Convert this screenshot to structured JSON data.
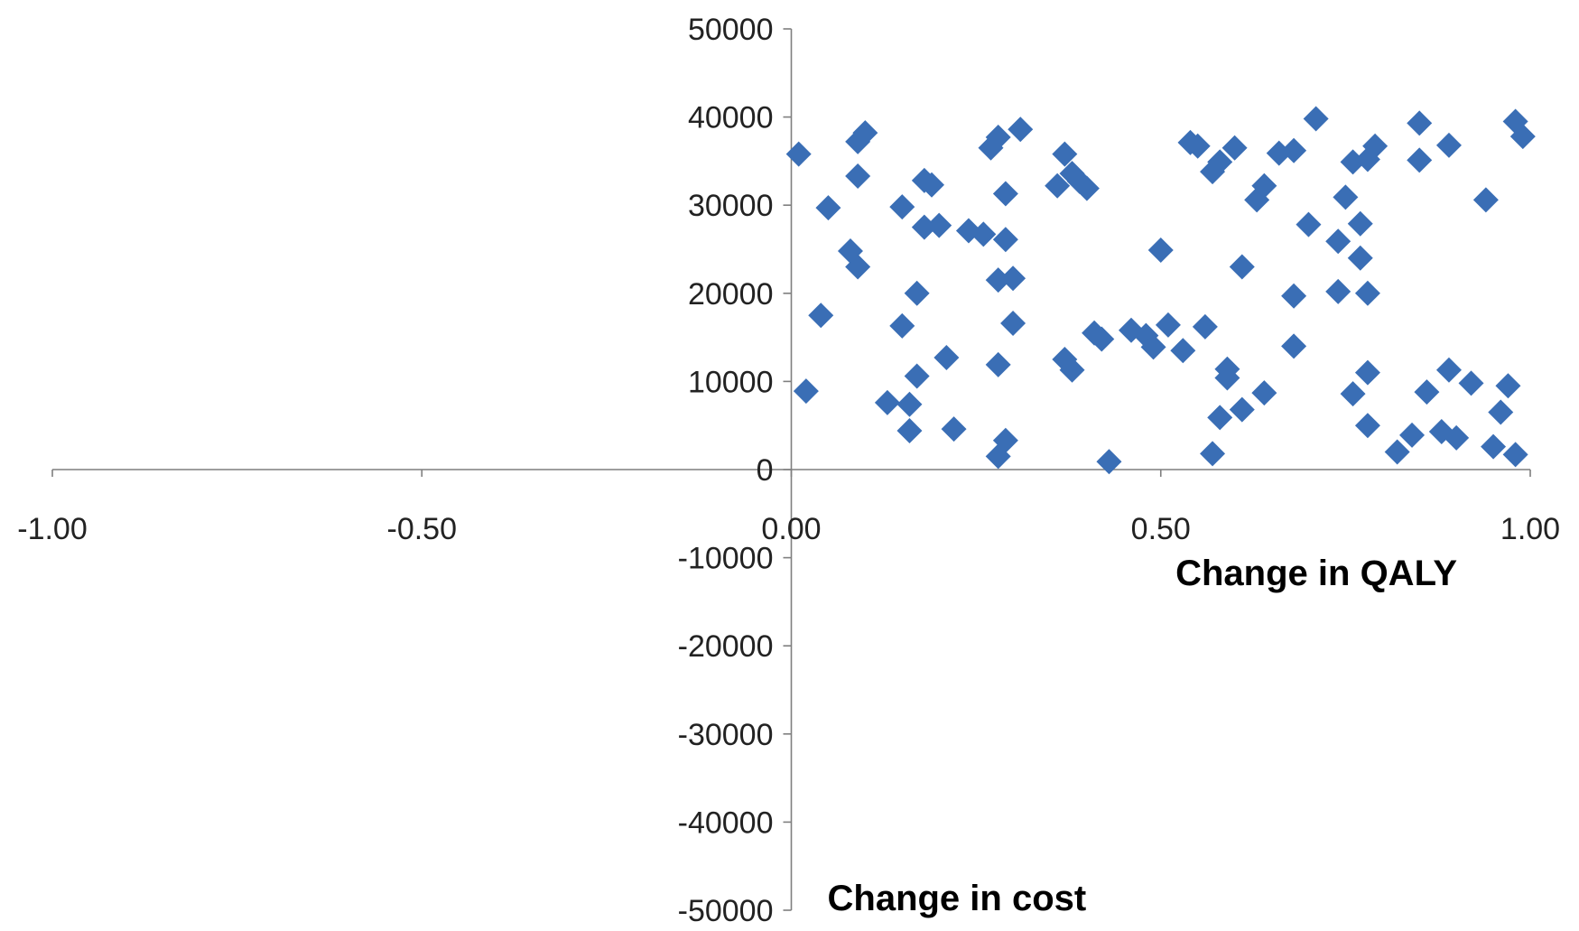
{
  "chart_data": {
    "type": "scatter",
    "xlabel": "Change in QALY",
    "ylabel": "Change in cost",
    "xlim": [
      -1.0,
      1.0
    ],
    "ylim": [
      -50000,
      50000
    ],
    "x_ticks": [
      "-1.00",
      "-0.50",
      "0.00",
      "0.50",
      "1.00"
    ],
    "y_ticks": [
      "50000",
      "40000",
      "30000",
      "20000",
      "10000",
      "0",
      "-10000",
      "-20000",
      "-30000",
      "-40000",
      "-50000"
    ],
    "grid": false,
    "marker": "diamond",
    "color": "#3a6eb5",
    "series": [
      {
        "points": [
          [
            0.01,
            35800
          ],
          [
            0.02,
            8900
          ],
          [
            0.04,
            17500
          ],
          [
            0.05,
            29700
          ],
          [
            0.08,
            24800
          ],
          [
            0.09,
            23000
          ],
          [
            0.09,
            33300
          ],
          [
            0.09,
            37200
          ],
          [
            0.1,
            38200
          ],
          [
            0.13,
            7600
          ],
          [
            0.15,
            29800
          ],
          [
            0.15,
            16300
          ],
          [
            0.16,
            7400
          ],
          [
            0.16,
            4400
          ],
          [
            0.17,
            20000
          ],
          [
            0.17,
            10600
          ],
          [
            0.18,
            27500
          ],
          [
            0.18,
            32800
          ],
          [
            0.19,
            32300
          ],
          [
            0.2,
            27700
          ],
          [
            0.21,
            12700
          ],
          [
            0.22,
            4600
          ],
          [
            0.24,
            27100
          ],
          [
            0.26,
            26700
          ],
          [
            0.27,
            36500
          ],
          [
            0.28,
            37700
          ],
          [
            0.28,
            21500
          ],
          [
            0.28,
            11900
          ],
          [
            0.28,
            1500
          ],
          [
            0.29,
            3300
          ],
          [
            0.29,
            31300
          ],
          [
            0.29,
            26100
          ],
          [
            0.3,
            21700
          ],
          [
            0.3,
            16600
          ],
          [
            0.31,
            38600
          ],
          [
            0.36,
            32200
          ],
          [
            0.37,
            35800
          ],
          [
            0.37,
            12500
          ],
          [
            0.38,
            33600
          ],
          [
            0.38,
            11300
          ],
          [
            0.39,
            32700
          ],
          [
            0.4,
            31900
          ],
          [
            0.41,
            15500
          ],
          [
            0.42,
            14800
          ],
          [
            0.43,
            900
          ],
          [
            0.46,
            15800
          ],
          [
            0.48,
            15200
          ],
          [
            0.49,
            13900
          ],
          [
            0.5,
            24900
          ],
          [
            0.51,
            16400
          ],
          [
            0.53,
            13500
          ],
          [
            0.54,
            37100
          ],
          [
            0.55,
            36700
          ],
          [
            0.56,
            16200
          ],
          [
            0.57,
            1800
          ],
          [
            0.57,
            33800
          ],
          [
            0.58,
            34900
          ],
          [
            0.58,
            5900
          ],
          [
            0.59,
            11400
          ],
          [
            0.59,
            10400
          ],
          [
            0.6,
            36500
          ],
          [
            0.61,
            6800
          ],
          [
            0.61,
            23000
          ],
          [
            0.63,
            30600
          ],
          [
            0.64,
            32200
          ],
          [
            0.64,
            8700
          ],
          [
            0.66,
            35900
          ],
          [
            0.68,
            36200
          ],
          [
            0.68,
            19700
          ],
          [
            0.68,
            14000
          ],
          [
            0.7,
            27800
          ],
          [
            0.71,
            39800
          ],
          [
            0.74,
            20200
          ],
          [
            0.74,
            25900
          ],
          [
            0.75,
            30900
          ],
          [
            0.76,
            8600
          ],
          [
            0.76,
            34900
          ],
          [
            0.77,
            27900
          ],
          [
            0.77,
            24000
          ],
          [
            0.78,
            20000
          ],
          [
            0.78,
            35200
          ],
          [
            0.78,
            11000
          ],
          [
            0.78,
            5000
          ],
          [
            0.79,
            36700
          ],
          [
            0.82,
            2000
          ],
          [
            0.84,
            3900
          ],
          [
            0.85,
            39300
          ],
          [
            0.85,
            35100
          ],
          [
            0.86,
            8800
          ],
          [
            0.88,
            4300
          ],
          [
            0.89,
            36800
          ],
          [
            0.89,
            11300
          ],
          [
            0.9,
            3600
          ],
          [
            0.92,
            9800
          ],
          [
            0.94,
            30600
          ],
          [
            0.95,
            2600
          ],
          [
            0.96,
            6500
          ],
          [
            0.97,
            9500
          ],
          [
            0.98,
            1700
          ],
          [
            0.98,
            39500
          ],
          [
            0.99,
            37800
          ]
        ]
      }
    ]
  }
}
